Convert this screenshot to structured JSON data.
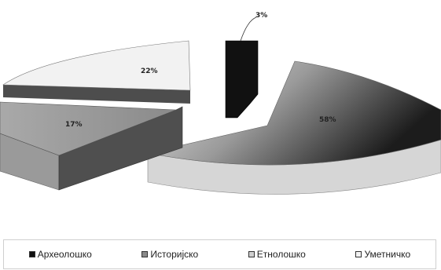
{
  "chart_data": {
    "type": "pie",
    "title": "",
    "categories": [
      "Археолошко",
      "Историјско",
      "Етнолошко",
      "Уметничко"
    ],
    "values": [
      3,
      17,
      58,
      22
    ],
    "value_labels": [
      "3%",
      "17%",
      "58%",
      "22%"
    ],
    "colors": [
      "#111111",
      "#8a8a8a",
      "#cfcfcf",
      "#f2f2f2"
    ],
    "legend_position": "bottom",
    "grid": false
  },
  "legend": {
    "items": [
      {
        "label": "Археолошко",
        "color": "#111111"
      },
      {
        "label": "Историјско",
        "color": "#8a8a8a"
      },
      {
        "label": "Етнолошко",
        "color": "#cfcfcf"
      },
      {
        "label": "Уметничко",
        "color": "#f2f2f2"
      }
    ]
  }
}
